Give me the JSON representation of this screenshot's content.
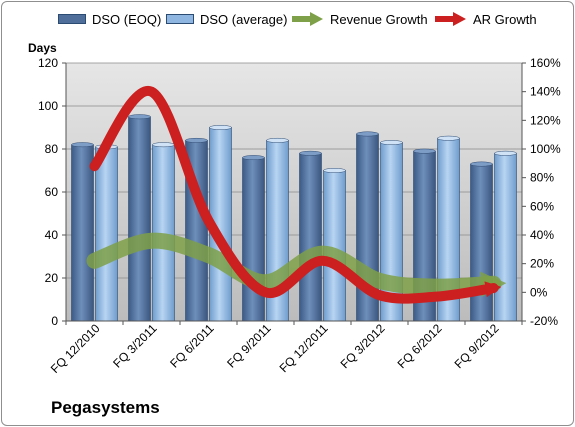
{
  "chart_data": {
    "type": "bar",
    "title": "",
    "company": "Pegasystems",
    "ylabel": "Days",
    "ylim": [
      0,
      120
    ],
    "yticks": [
      "0",
      "20",
      "40",
      "60",
      "80",
      "100",
      "120"
    ],
    "y2lim": [
      -20,
      160
    ],
    "y2ticks": [
      "-20%",
      "0%",
      "20%",
      "40%",
      "60%",
      "80%",
      "100%",
      "120%",
      "140%",
      "160%"
    ],
    "categories": [
      "FQ 12/2010",
      "FQ 3/2011",
      "FQ 6/2011",
      "FQ 9/2011",
      "FQ 12/2011",
      "FQ 3/2012",
      "FQ 6/2012",
      "FQ 9/2012"
    ],
    "series": [
      {
        "name": "DSO (EOQ)",
        "type": "bar",
        "axis": "left",
        "color": "#4f6f9a",
        "values": [
          82,
          95,
          84,
          76,
          78,
          87,
          79,
          73
        ]
      },
      {
        "name": "DSO (average)",
        "type": "bar",
        "axis": "left",
        "color": "#8fb6e0",
        "values": [
          81,
          82,
          90,
          84,
          70,
          83,
          85,
          78
        ]
      },
      {
        "name": "Revenue Growth",
        "type": "line",
        "axis": "right",
        "color": "#7ea048",
        "values": [
          22,
          36,
          26,
          7,
          27,
          8,
          4,
          6
        ]
      },
      {
        "name": "AR Growth",
        "type": "line",
        "axis": "right",
        "color": "#cc1f1f",
        "values": [
          88,
          140,
          50,
          0,
          22,
          -2,
          -3,
          3
        ]
      }
    ],
    "grid": true,
    "legend": "top"
  }
}
